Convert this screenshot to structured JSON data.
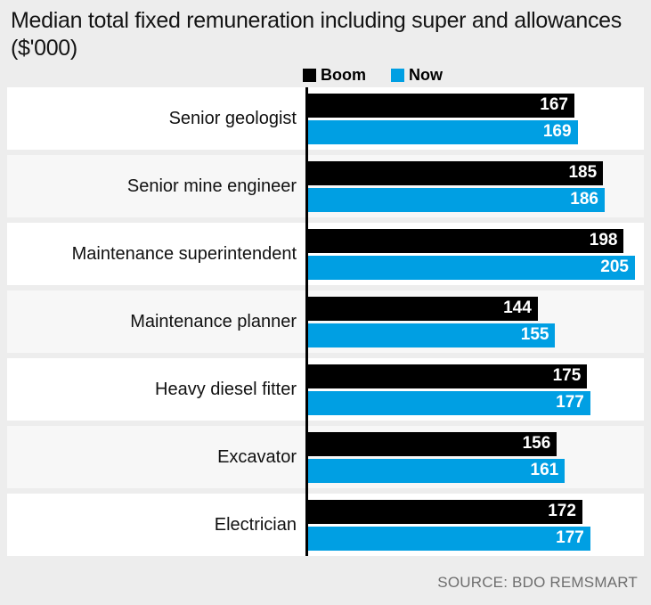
{
  "header": {
    "title": "Median total fixed remuneration including super and allowances ($'000)"
  },
  "source": {
    "label": "SOURCE: BDO REMSMART"
  },
  "colors": {
    "background": "#ededed",
    "row_white": "#ffffff",
    "row_gray": "#f7f7f7",
    "boom_bar": "#000000",
    "now_bar": "#009fe3",
    "value_text": "#ffffff",
    "source_text": "#6e6e6e"
  },
  "chart_data": {
    "type": "bar",
    "orientation": "horizontal",
    "title": "Median total fixed remuneration including super and allowances ($'000)",
    "xlabel": "",
    "ylabel": "",
    "xlim": [
      0,
      205
    ],
    "grid": false,
    "legend_position": "top",
    "value_labels": "inside-end",
    "categories": [
      "Senior geologist",
      "Senior mine engineer",
      "Maintenance superintendent",
      "Maintenance planner",
      "Heavy diesel fitter",
      "Excavator",
      "Electrician"
    ],
    "series": [
      {
        "name": "Boom",
        "color": "#000000",
        "values": [
          167,
          185,
          198,
          144,
          175,
          156,
          172
        ]
      },
      {
        "name": "Now",
        "color": "#009fe3",
        "values": [
          169,
          186,
          205,
          155,
          177,
          161,
          177
        ]
      }
    ]
  }
}
